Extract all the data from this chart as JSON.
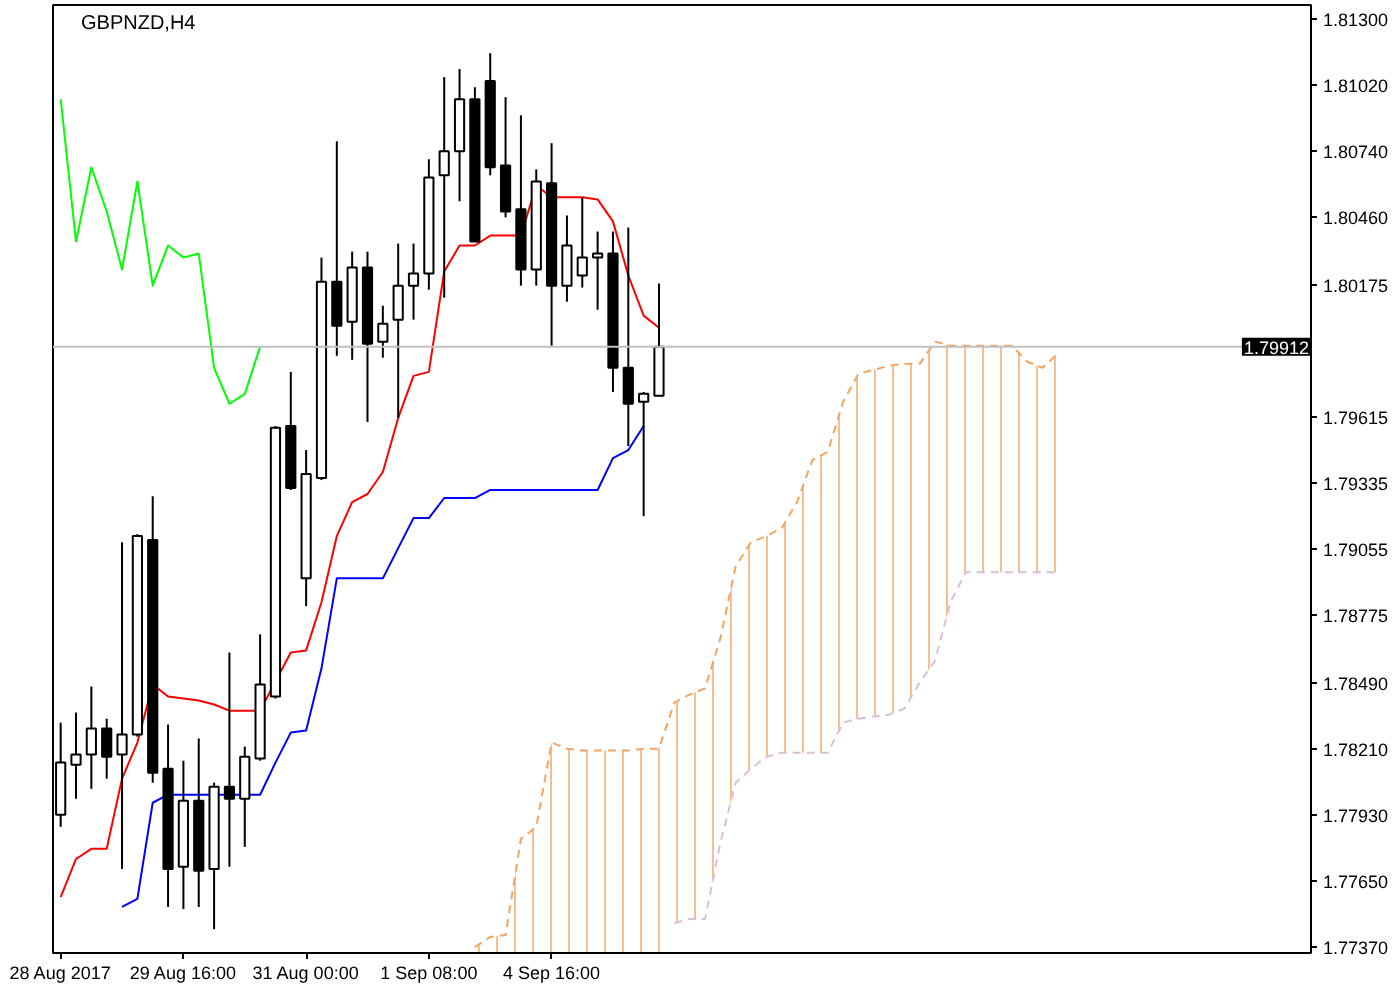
{
  "chart_data": {
    "type": "candlestick",
    "title": "GBPNZD,H4",
    "categories": [
      "28 Aug 2017",
      null,
      null,
      null,
      null,
      null,
      null,
      null,
      "29 Aug 16:00",
      null,
      null,
      null,
      null,
      null,
      null,
      null,
      "31 Aug 00:00",
      null,
      null,
      null,
      null,
      null,
      null,
      null,
      "1 Sep 08:00",
      null,
      null,
      null,
      null,
      null,
      null,
      null,
      "4 Sep 16:00",
      null,
      null,
      null,
      null,
      null,
      null,
      null,
      null,
      null,
      null,
      null,
      null,
      null,
      null,
      null,
      null,
      null,
      null,
      null,
      null,
      null,
      null,
      null,
      null,
      null,
      null,
      null,
      null,
      null,
      null,
      null,
      null,
      null,
      null,
      null,
      null,
      null,
      null,
      null,
      null,
      null,
      null,
      null,
      null,
      null,
      null,
      null,
      null,
      null
    ],
    "ohlc": [
      [
        1.77931,
        1.78321,
        1.7788,
        1.78152
      ],
      [
        1.78143,
        1.78364,
        1.77999,
        1.78186
      ],
      [
        1.78186,
        1.78474,
        1.78041,
        1.78296
      ],
      [
        1.78296,
        1.78338,
        1.78084,
        1.78177
      ],
      [
        1.78186,
        1.79085,
        1.77702,
        1.78271
      ],
      [
        1.78271,
        1.79119,
        1.78262,
        1.79111
      ],
      [
        1.79094,
        1.7928,
        1.78067,
        1.78109
      ],
      [
        1.78126,
        1.78313,
        1.77541,
        1.77702
      ],
      [
        1.77711,
        1.7816,
        1.77532,
        1.77991
      ],
      [
        1.77991,
        1.78254,
        1.77541,
        1.77694
      ],
      [
        1.77702,
        1.78067,
        1.77447,
        1.7805
      ],
      [
        1.7805,
        1.78618,
        1.77711,
        1.77999
      ],
      [
        1.77999,
        1.7822,
        1.77795,
        1.78177
      ],
      [
        1.78169,
        1.78695,
        1.7816,
        1.78483
      ],
      [
        1.78432,
        1.79577,
        1.78423,
        1.79569
      ],
      [
        1.79577,
        1.79806,
        1.79306,
        1.79314
      ],
      [
        1.78932,
        1.79475,
        1.78814,
        1.79374
      ],
      [
        1.79357,
        1.8029,
        1.79348,
        1.80188
      ],
      [
        1.80188,
        1.80782,
        1.79874,
        1.80001
      ],
      [
        1.80018,
        1.80315,
        1.79857,
        1.80248
      ],
      [
        1.80248,
        1.80315,
        1.79594,
        1.79925
      ],
      [
        1.79934,
        1.80086,
        1.79866,
        1.8001
      ],
      [
        1.80027,
        1.80349,
        1.79611,
        1.80171
      ],
      [
        1.80171,
        1.80349,
        1.80027,
        1.80222
      ],
      [
        1.80222,
        1.80706,
        1.80154,
        1.80629
      ],
      [
        1.80638,
        1.81054,
        1.8012,
        1.8074
      ],
      [
        1.8074,
        1.81088,
        1.80528,
        1.8096
      ],
      [
        1.8096,
        1.81011,
        1.80358,
        1.80358
      ],
      [
        1.81037,
        1.81155,
        1.80638,
        1.80672
      ],
      [
        1.8068,
        1.80969,
        1.8046,
        1.80485
      ],
      [
        1.80494,
        1.80892,
        1.80171,
        1.80239
      ],
      [
        1.80239,
        1.80663,
        1.80171,
        1.80612
      ],
      [
        1.80604,
        1.80774,
        1.79917,
        1.80171
      ],
      [
        1.80171,
        1.80468,
        1.80103,
        1.80341
      ],
      [
        1.80214,
        1.80545,
        1.80163,
        1.8029
      ],
      [
        1.8029,
        1.804,
        1.80069,
        1.80307
      ],
      [
        1.80307,
        1.804,
        1.79721,
        1.79823
      ],
      [
        1.79823,
        1.80417,
        1.79492,
        1.79671
      ],
      [
        1.79679,
        1.79721,
        1.79195,
        1.79713
      ],
      [
        1.79705,
        1.8018,
        1.79705,
        1.79912
      ],
      null,
      null,
      null,
      null,
      null,
      null,
      null,
      null,
      null,
      null,
      null,
      null,
      null,
      null,
      null,
      null,
      null,
      null,
      null,
      null,
      null,
      null,
      null,
      null,
      null,
      null,
      null,
      null,
      null,
      null,
      null,
      null,
      null,
      null,
      null,
      null,
      null,
      null,
      null,
      null,
      null,
      null
    ],
    "series": [
      {
        "type": "line",
        "color": "#ff0000",
        "line_style": "solid",
        "values": [
          1.77583,
          1.77744,
          1.77787,
          1.77787,
          1.78084,
          1.78237,
          1.78483,
          1.78432,
          1.78423,
          1.78415,
          1.78398,
          1.78372,
          1.78372,
          1.78372,
          null,
          1.78618,
          1.78627,
          1.78831,
          1.79111,
          1.79255,
          1.79289,
          1.79382,
          1.79611,
          1.79789,
          1.79806,
          1.80231,
          1.80341,
          1.80341,
          1.80383,
          1.80383,
          1.80383,
          1.80595,
          1.80545,
          1.80545,
          1.80545,
          1.80536,
          1.80443,
          1.80214,
          1.80044,
          1.79993,
          null,
          null,
          null,
          null,
          null,
          null,
          null,
          null,
          null,
          null,
          null,
          null,
          null,
          null,
          null,
          null,
          null,
          null,
          null,
          null,
          null,
          null,
          null,
          null,
          null,
          null,
          null,
          null,
          null,
          null,
          null,
          null,
          null,
          null,
          null,
          null,
          null,
          null,
          null,
          null,
          null,
          null
        ]
      },
      {
        "type": "line",
        "color": "#0000ff",
        "line_style": "solid",
        "values": [
          null,
          null,
          null,
          null,
          1.77541,
          1.77575,
          1.77982,
          1.78016,
          1.78016,
          1.78016,
          1.78016,
          1.78016,
          1.78016,
          1.78016,
          1.78152,
          1.78279,
          1.78288,
          1.78551,
          1.78932,
          1.78932,
          1.78932,
          1.78932,
          1.7906,
          1.79187,
          1.79187,
          1.79272,
          1.79272,
          1.79272,
          1.79306,
          1.79306,
          1.79306,
          1.79306,
          1.79306,
          1.79306,
          1.79306,
          1.79306,
          1.79441,
          1.79475,
          1.79577,
          null,
          null,
          null,
          null,
          null,
          null,
          null,
          null,
          null,
          null,
          null,
          null,
          null,
          null,
          null,
          null,
          null,
          null,
          null,
          null,
          null,
          null,
          null,
          null,
          null,
          null,
          null,
          null,
          null,
          null,
          null,
          null,
          null,
          null,
          null,
          null,
          null,
          null,
          null,
          null,
          null,
          null,
          null
        ]
      },
      {
        "type": "line",
        "color": "#00ff00",
        "line_style": "solid",
        "values": [
          1.8096,
          1.80358,
          1.80672,
          1.80485,
          1.80239,
          1.80612,
          1.80171,
          1.80341,
          1.8029,
          1.80307,
          1.79823,
          1.79671,
          1.79713,
          1.79912,
          null,
          null,
          null,
          null,
          null,
          null,
          null,
          null,
          null,
          null,
          null,
          null,
          null,
          null,
          null,
          null,
          null,
          null,
          null,
          null,
          null,
          null,
          null,
          null,
          null,
          null,
          null,
          null,
          null,
          null,
          null,
          null,
          null,
          null,
          null,
          null,
          null,
          null,
          null,
          null,
          null,
          null,
          null,
          null,
          null,
          null,
          null,
          null,
          null,
          null,
          null,
          null,
          null,
          null,
          null,
          null,
          null,
          null,
          null,
          null,
          null,
          null,
          null,
          null,
          null,
          null,
          null,
          null
        ]
      },
      {
        "type": "line",
        "color": "#f4a460",
        "line_style": "dashed",
        "lower": [
          null,
          null,
          null,
          null,
          null,
          null,
          null,
          null,
          null,
          null,
          null,
          null,
          null,
          null,
          null,
          null,
          null,
          null,
          null,
          null,
          null,
          null,
          null,
          null,
          null,
          null,
          null,
          1.77346,
          1.77346,
          1.77346,
          1.77346,
          1.77346,
          1.77346,
          1.77346,
          1.77346,
          1.77346,
          1.77346,
          1.77346,
          1.77346,
          1.77346,
          1.77473,
          1.7749,
          1.7749,
          1.77812,
          1.78067,
          1.78126,
          1.78177,
          1.78194,
          1.78194,
          1.78194,
          1.78194,
          1.78321,
          1.78338,
          1.78347,
          1.78355,
          1.78381,
          1.78491,
          1.78584,
          1.78831,
          1.78958,
          1.78958,
          1.78958,
          1.78958,
          1.78958,
          1.78958,
          1.78958,
          null,
          null,
          null,
          null,
          null,
          null,
          null,
          null,
          null,
          null,
          null,
          null,
          null,
          null,
          null,
          null
        ],
        "upper": [
          null,
          null,
          null,
          null,
          null,
          null,
          null,
          null,
          null,
          null,
          null,
          null,
          null,
          null,
          null,
          null,
          null,
          null,
          null,
          null,
          null,
          null,
          null,
          null,
          null,
          null,
          null,
          1.77371,
          1.77414,
          1.77422,
          1.77829,
          1.7788,
          1.78237,
          1.78211,
          1.78203,
          1.78203,
          1.78203,
          1.78203,
          1.78211,
          1.78211,
          1.78406,
          1.7844,
          1.78466,
          1.78678,
          1.78983,
          1.79085,
          1.79111,
          1.79144,
          1.79255,
          1.79433,
          1.79467,
          1.79679,
          1.79798,
          1.79815,
          1.79832,
          1.7984,
          1.7984,
          1.79934,
          1.79917,
          1.79917,
          1.79917,
          1.79917,
          1.79917,
          1.79849,
          1.79823,
          1.79883,
          null,
          null,
          null,
          null,
          null,
          null,
          null,
          null,
          null,
          null,
          null,
          null,
          null,
          null,
          null,
          null
        ],
        "values": [
          null,
          null,
          null,
          null,
          null,
          null,
          null,
          null,
          null,
          null,
          null,
          null,
          null,
          null,
          null,
          null,
          null,
          null,
          null,
          null,
          null,
          null,
          null,
          null,
          null,
          null,
          null,
          1.77371,
          1.77414,
          1.77422,
          1.77829,
          1.7788,
          1.78237,
          1.78211,
          1.78203,
          1.78203,
          1.78203,
          1.78203,
          1.78211,
          1.78211,
          1.78406,
          1.7844,
          1.78466,
          1.78678,
          1.78983,
          1.79085,
          1.79111,
          1.79144,
          1.79255,
          1.79433,
          1.79467,
          1.79679,
          1.79798,
          1.79815,
          1.79832,
          1.7984,
          1.7984,
          1.79934,
          1.79917,
          1.79917,
          1.79917,
          1.79917,
          1.79917,
          1.79849,
          1.79823,
          1.79883,
          null,
          null,
          null,
          null,
          null,
          null,
          null,
          null,
          null,
          null,
          null,
          null,
          null,
          null,
          null,
          null
        ]
      },
      {
        "type": "line",
        "color": "#d8bfd8",
        "line_style": "dashed",
        "values": [
          null,
          null,
          null,
          null,
          null,
          null,
          null,
          null,
          null,
          null,
          null,
          null,
          null,
          null,
          null,
          null,
          null,
          null,
          null,
          null,
          null,
          null,
          null,
          null,
          null,
          null,
          null,
          null,
          null,
          null,
          null,
          null,
          null,
          null,
          null,
          null,
          null,
          null,
          null,
          null,
          1.77473,
          1.7749,
          1.7749,
          1.77812,
          1.78067,
          1.78126,
          1.78177,
          1.78194,
          1.78194,
          1.78194,
          1.78194,
          1.78321,
          1.78338,
          1.78347,
          1.78355,
          1.78381,
          1.78491,
          1.78584,
          1.78831,
          1.78958,
          1.78958,
          1.78958,
          1.78958,
          1.78958,
          1.78958,
          1.78958,
          null,
          null,
          null,
          null,
          null,
          null,
          null,
          null,
          null,
          null,
          null,
          null,
          null,
          null,
          null,
          null
        ]
      }
    ],
    "ylim": [
      1.77346,
      1.81359
    ],
    "yticks": [
      {
        "value": 1.813,
        "label": "1.81300"
      },
      {
        "value": 1.8102,
        "label": "1.81020"
      },
      {
        "value": 1.8074,
        "label": "1.80740"
      },
      {
        "value": 1.8046,
        "label": "1.80460"
      },
      {
        "value": 1.80175,
        "label": "1.80175"
      },
      {
        "value": 1.79615,
        "label": "1.79615"
      },
      {
        "value": 1.79335,
        "label": "1.79335"
      },
      {
        "value": 1.79055,
        "label": "1.79055"
      },
      {
        "value": 1.78775,
        "label": "1.78775"
      },
      {
        "value": 1.7849,
        "label": "1.78490"
      },
      {
        "value": 1.7821,
        "label": "1.78210"
      },
      {
        "value": 1.7793,
        "label": "1.77930"
      },
      {
        "value": 1.7765,
        "label": "1.77650"
      },
      {
        "value": 1.7737,
        "label": "1.77370"
      }
    ],
    "ref_lines": [
      {
        "axis": "y",
        "value": 1.79912,
        "label": "1.79912",
        "color": "#c0c0c0"
      }
    ],
    "grid": false
  }
}
